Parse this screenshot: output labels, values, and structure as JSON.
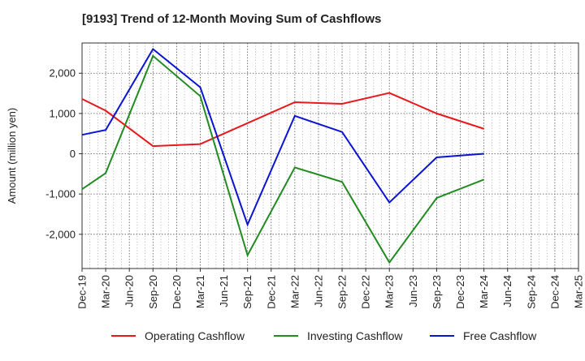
{
  "chart_data": {
    "type": "line",
    "title": "[9193]  Trend of 12-Month Moving Sum of Cashflows",
    "xlabel": "",
    "ylabel": "Amount (million yen)",
    "ylim": [
      -2850,
      2750
    ],
    "yticks": [
      -2000,
      -1000,
      0,
      1000,
      2000
    ],
    "ytick_labels": [
      "-2,000",
      "-1,000",
      "0",
      "1,000",
      "2,000"
    ],
    "categories": [
      "Dec-19",
      "Mar-20",
      "Jun-20",
      "Sep-20",
      "Dec-20",
      "Mar-21",
      "Jun-21",
      "Sep-21",
      "Dec-21",
      "Mar-22",
      "Jun-22",
      "Sep-22",
      "Dec-22",
      "Mar-23",
      "Jun-23",
      "Sep-23",
      "Dec-23",
      "Mar-24",
      "Jun-24",
      "Sep-24",
      "Dec-24",
      "Mar-25"
    ],
    "grid": true,
    "legend_position": "bottom",
    "series": [
      {
        "name": "Operating Cashflow",
        "color": "#e8191c",
        "x": [
          "Dec-19",
          "Mar-20",
          "Sep-20",
          "Mar-21",
          "Mar-22",
          "Sep-22",
          "Mar-23",
          "Sep-23",
          "Mar-24"
        ],
        "values": [
          1360,
          1070,
          190,
          240,
          1280,
          1240,
          1510,
          1000,
          620
        ]
      },
      {
        "name": "Investing Cashflow",
        "color": "#228b22",
        "x": [
          "Dec-19",
          "Mar-20",
          "Sep-20",
          "Mar-21",
          "Sep-21",
          "Mar-22",
          "Sep-22",
          "Mar-23",
          "Sep-23",
          "Mar-24"
        ],
        "values": [
          -880,
          -480,
          2430,
          1430,
          -2520,
          -340,
          -700,
          -2700,
          -1100,
          -640
        ]
      },
      {
        "name": "Free Cashflow",
        "color": "#0a14d2",
        "x": [
          "Dec-19",
          "Mar-20",
          "Sep-20",
          "Mar-21",
          "Sep-21",
          "Mar-22",
          "Sep-22",
          "Mar-23",
          "Sep-23",
          "Mar-24"
        ],
        "values": [
          470,
          590,
          2600,
          1650,
          -1760,
          940,
          540,
          -1210,
          -90,
          0
        ]
      }
    ]
  }
}
